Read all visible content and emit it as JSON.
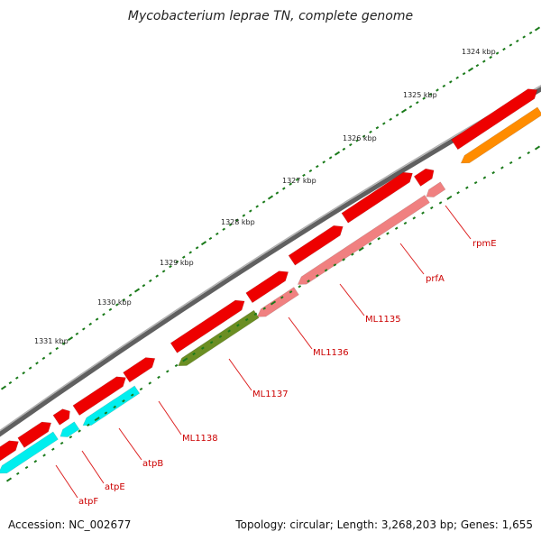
{
  "title": "Mycobacterium leprae TN, complete genome",
  "footer": {
    "accession": "Accession: NC_002677",
    "summary": "Topology: circular; Length: 3,268,203 bp; Genes: 1,655"
  },
  "colors": {
    "backbone": "#808080",
    "cds_forward": "#ee0000",
    "cds_reverse": "#f08080",
    "atp_genes": "#00eeee",
    "ml1137": "#6b8e23",
    "rpmE": "#ff8c00",
    "tick": "#1a7a1a",
    "label": "#cc0000"
  },
  "scale_labels": [
    "1324 kbp",
    "1325 kbp",
    "1326 kbp",
    "1327 kbp",
    "1328 kbp",
    "1329 kbp",
    "1330 kbp",
    "1331 kbp"
  ],
  "gene_labels": [
    "rpmE",
    "prfA",
    "ML1135",
    "ML1136",
    "ML1137",
    "ML1138",
    "atpB",
    "atpE",
    "atpF"
  ]
}
